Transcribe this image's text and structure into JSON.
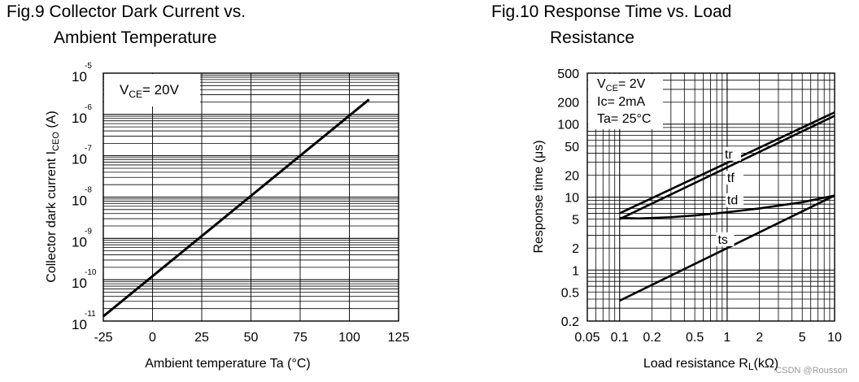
{
  "watermark": "CSDN @Rousson",
  "chart_data": [
    {
      "type": "line",
      "title_line1": "Fig.9 Collector Dark Current vs.",
      "title_line2": "Ambient Temperature",
      "xlabel": "Ambient temperature Ta (°C)",
      "ylabel": "Collector dark current ICEO (A)",
      "annotation": {
        "main": "V",
        "sub": "CE",
        "rest": "= 20V"
      },
      "x_ticks": [
        -25,
        0,
        25,
        50,
        75,
        100,
        125
      ],
      "x_tick_labels": [
        "-25",
        "0",
        "25",
        "50",
        "75",
        "100",
        "125"
      ],
      "xlim": [
        -25,
        125
      ],
      "y_scale": "log",
      "ylim": [
        1e-11,
        1e-05
      ],
      "y_tick_labels": [
        {
          "base": "10",
          "exp": "-5"
        },
        {
          "base": "10",
          "exp": "-6"
        },
        {
          "base": "10",
          "exp": "-7"
        },
        {
          "base": "10",
          "exp": "-8"
        },
        {
          "base": "10",
          "exp": "-9"
        },
        {
          "base": "10",
          "exp": "-10"
        },
        {
          "base": "10",
          "exp": "-11"
        }
      ],
      "series": [
        {
          "name": "ICEO",
          "x": [
            -25,
            110
          ],
          "y": [
            1.3e-11,
            2.3e-06
          ]
        }
      ]
    },
    {
      "type": "line",
      "title_line1": "Fig.10 Response Time vs. Load",
      "title_line2": "Resistance",
      "xlabel": "Load resistance RL(kΩ)",
      "ylabel": "Response time (μs)",
      "annotation_lines": [
        "VCE= 2V",
        "Ic= 2mA",
        "Ta= 25°C"
      ],
      "x_scale": "log",
      "xlim": [
        0.05,
        10
      ],
      "x_ticks": [
        0.05,
        0.1,
        0.2,
        0.5,
        1,
        2,
        5,
        10
      ],
      "x_tick_labels": [
        "0.05",
        "0.1",
        "0.2",
        "0.5",
        "1",
        "2",
        "5",
        "10"
      ],
      "y_scale": "log",
      "ylim": [
        0.2,
        500
      ],
      "y_ticks": [
        0.2,
        0.5,
        1,
        2,
        5,
        10,
        20,
        50,
        100,
        200,
        500
      ],
      "y_tick_labels": [
        "0.2",
        "0.5",
        "1",
        "2",
        "5",
        "10",
        "20",
        "50",
        "100",
        "200",
        "500"
      ],
      "series": [
        {
          "name": "tr",
          "x": [
            0.1,
            10
          ],
          "y": [
            6,
            145
          ]
        },
        {
          "name": "tf",
          "x": [
            0.1,
            10
          ],
          "y": [
            5,
            130
          ]
        },
        {
          "name": "td",
          "x": [
            0.1,
            0.15,
            0.3,
            0.5,
            1,
            2,
            5,
            10
          ],
          "y": [
            5.2,
            5.1,
            5.3,
            5.6,
            6.2,
            7,
            8.5,
            10.5
          ]
        },
        {
          "name": "ts",
          "x": [
            0.1,
            10
          ],
          "y": [
            0.38,
            10.5
          ]
        }
      ]
    }
  ]
}
